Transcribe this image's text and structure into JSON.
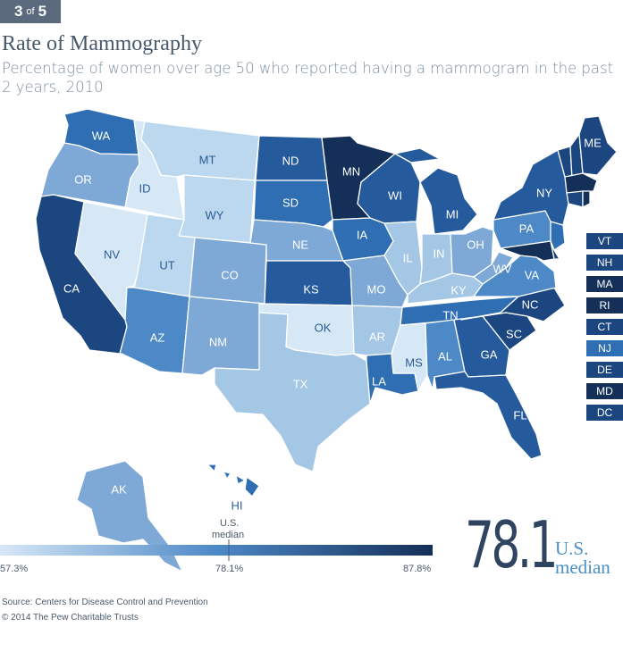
{
  "badge": {
    "current": "3",
    "of": "of",
    "total": "5"
  },
  "title": "Rate of Mammography",
  "subtitle": "Percentage of women over age 50 who reported having a mammogram in the past 2 years, 2010",
  "colors": {
    "lightest": "#d6e8f6",
    "light": "#bcd8ef",
    "mid_light": "#a5c7e6",
    "mid": "#7ea8d6",
    "mid_blue": "#4d88c7",
    "blue": "#2f6eb2",
    "dark_blue": "#255a9c",
    "darker": "#1c4680",
    "darkest": "#142f58"
  },
  "states": [
    {
      "abbr": "WA"
    },
    {
      "abbr": "OR"
    },
    {
      "abbr": "CA"
    },
    {
      "abbr": "NV"
    },
    {
      "abbr": "ID"
    },
    {
      "abbr": "MT"
    },
    {
      "abbr": "WY"
    },
    {
      "abbr": "UT"
    },
    {
      "abbr": "AZ"
    },
    {
      "abbr": "CO"
    },
    {
      "abbr": "NM"
    },
    {
      "abbr": "ND"
    },
    {
      "abbr": "SD"
    },
    {
      "abbr": "NE"
    },
    {
      "abbr": "KS"
    },
    {
      "abbr": "OK"
    },
    {
      "abbr": "TX"
    },
    {
      "abbr": "MN"
    },
    {
      "abbr": "IA"
    },
    {
      "abbr": "MO"
    },
    {
      "abbr": "AR"
    },
    {
      "abbr": "LA"
    },
    {
      "abbr": "WI"
    },
    {
      "abbr": "IL"
    },
    {
      "abbr": "MI"
    },
    {
      "abbr": "IN"
    },
    {
      "abbr": "OH"
    },
    {
      "abbr": "KY"
    },
    {
      "abbr": "TN"
    },
    {
      "abbr": "MS"
    },
    {
      "abbr": "AL"
    },
    {
      "abbr": "GA"
    },
    {
      "abbr": "FL"
    },
    {
      "abbr": "SC"
    },
    {
      "abbr": "NC"
    },
    {
      "abbr": "VA"
    },
    {
      "abbr": "WV"
    },
    {
      "abbr": "PA"
    },
    {
      "abbr": "NY"
    },
    {
      "abbr": "ME"
    },
    {
      "abbr": "AK"
    },
    {
      "abbr": "HI"
    }
  ],
  "northeast_boxes": [
    "VT",
    "NH",
    "MA",
    "RI",
    "CT",
    "NJ",
    "DE",
    "MD",
    "DC"
  ],
  "legend": {
    "min": "57.3%",
    "median": "78.1%",
    "max": "87.8%",
    "median_label_line1": "U.S.",
    "median_label_line2": "median"
  },
  "median_value": "78.1",
  "median_word_1": "U.S.",
  "median_word_2": "median",
  "source": "Source: Centers for Disease Control and Prevention",
  "copyright": "© 2014 The Pew Charitable Trusts"
}
